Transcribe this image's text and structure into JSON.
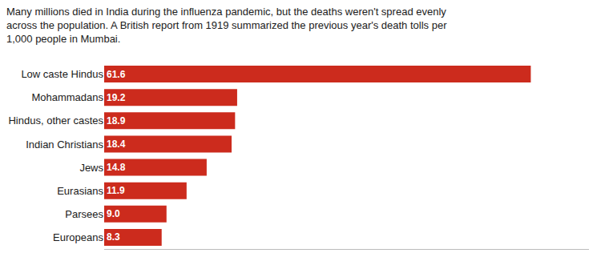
{
  "chart_data": {
    "type": "bar",
    "orientation": "horizontal",
    "subtitle": [
      "Many millions died in India during the influenza pandemic, but the deaths weren't spread evenly",
      "across the population. A British report from 1919 summarized the previous year's death tolls per",
      "1,000 people in Mumbai."
    ],
    "categories": [
      "Low caste Hindus",
      "Mohammadans",
      "Hindus, other castes",
      "Indian Christians",
      "Jews",
      "Eurasians",
      "Parsees",
      "Europeans"
    ],
    "values": [
      61.6,
      19.2,
      18.9,
      18.4,
      14.8,
      11.9,
      9.0,
      8.3
    ],
    "value_labels": [
      "61.6",
      "19.2",
      "18.9",
      "18.4",
      "14.8",
      "11.9",
      "9.0",
      "8.3"
    ],
    "color": "#cc2b1d",
    "xlim": [
      0,
      70
    ],
    "data_labels": true,
    "tick_labels": "y",
    "grid": false
  }
}
